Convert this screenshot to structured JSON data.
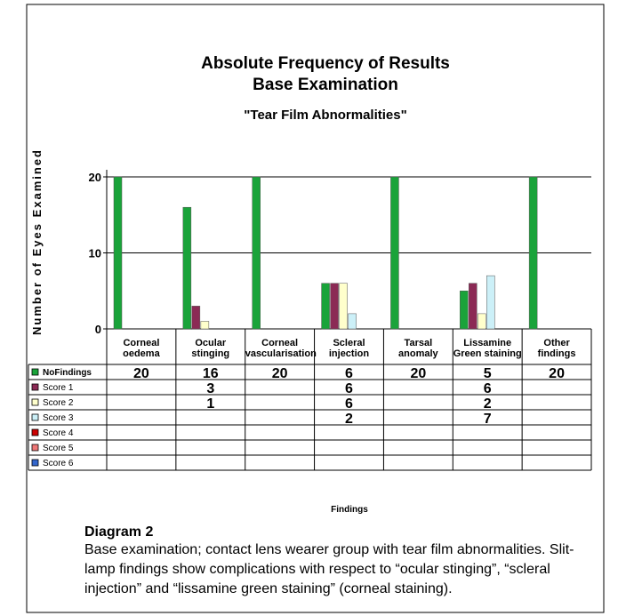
{
  "chart_data": {
    "type": "bar",
    "title": "Absolute Frequency of Results",
    "title2": "Base Examination",
    "subtitle": "\"Tear Film Abnormalities\"",
    "y_label": "Number of Eyes Examined",
    "x_label": "Findings",
    "categories": [
      "Corneal\noedema",
      "Ocular\nstinging",
      "Corneal\nvascularisation",
      "Scleral\ninjection",
      "Tarsal\nanomaly",
      "Lissamine\nGreen staining",
      "Other\nfindings"
    ],
    "series": [
      {
        "name": "NoFindings",
        "color": "#1aa33a",
        "values": [
          20,
          16,
          20,
          6,
          20,
          5,
          20
        ]
      },
      {
        "name": "Score 1",
        "color": "#8b2a55",
        "values": [
          null,
          3,
          null,
          6,
          null,
          6,
          null
        ]
      },
      {
        "name": "Score 2",
        "color": "#ffffcc",
        "values": [
          null,
          1,
          null,
          6,
          null,
          2,
          null
        ]
      },
      {
        "name": "Score 3",
        "color": "#ccf0f8",
        "values": [
          null,
          null,
          null,
          2,
          null,
          7,
          null
        ]
      },
      {
        "name": "Score 4",
        "color": "#cc0000",
        "values": [
          null,
          null,
          null,
          null,
          null,
          null,
          null
        ]
      },
      {
        "name": "Score 5",
        "color": "#ee7777",
        "values": [
          null,
          null,
          null,
          null,
          null,
          null,
          null
        ]
      },
      {
        "name": "Score 6",
        "color": "#3366cc",
        "values": [
          null,
          null,
          null,
          null,
          null,
          null,
          null
        ]
      }
    ],
    "ylim": [
      0,
      20
    ],
    "yticks": [
      0,
      10,
      20
    ],
    "grid": true
  },
  "caption": {
    "heading": "Diagram 2",
    "text": "Base examination; contact lens wearer group with tear film abnormalities. Slit-lamp findings show complications with respect to “ocular stinging”, “scleral injection” and “lissamine green staining” (corneal staining)."
  }
}
